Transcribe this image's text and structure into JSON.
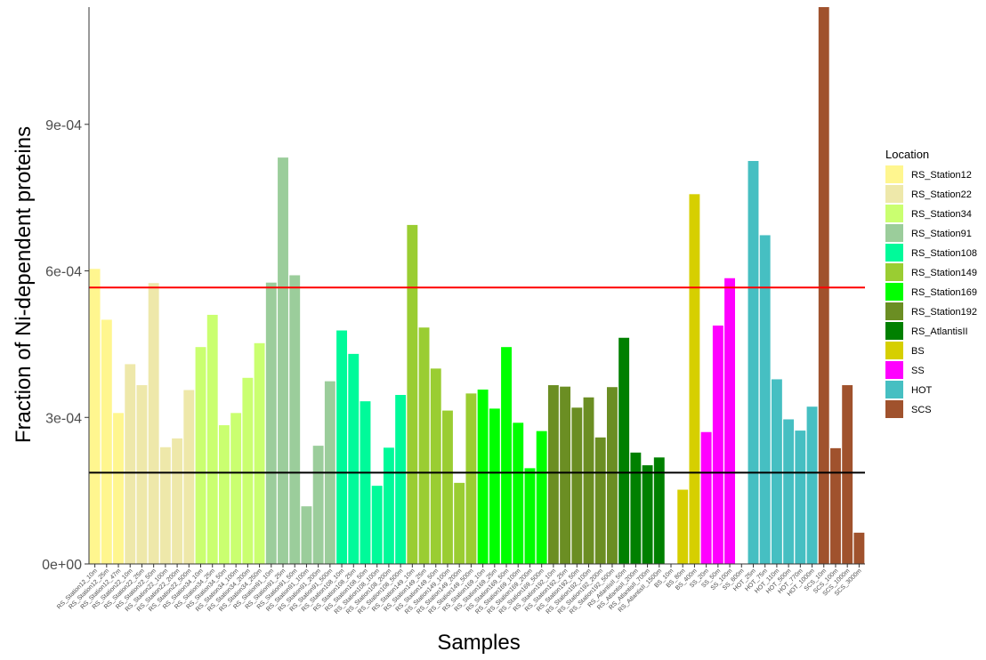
{
  "chart_data": {
    "type": "bar",
    "title": "",
    "xlabel": "Samples",
    "ylabel": "Fraction of Ni-dependent proteins",
    "ylim": [
      0,
      0.00114
    ],
    "yticks": [
      0,
      0.0003,
      0.0006,
      0.0009
    ],
    "ytick_labels": [
      "0e+00",
      "3e-04",
      "6e-04",
      "9e-04"
    ],
    "grid": false,
    "legend_title": "Location",
    "legend_position": "right",
    "reference_lines": [
      {
        "value": 0.000566,
        "color": "#ff0000"
      },
      {
        "value": 0.000187,
        "color": "#000000"
      }
    ],
    "groups": [
      {
        "name": "RS_Station12",
        "color": "#fff68f"
      },
      {
        "name": "RS_Station22",
        "color": "#eee8aa"
      },
      {
        "name": "RS_Station34",
        "color": "#caff70"
      },
      {
        "name": "RS_Station91",
        "color": "#9bcd9b"
      },
      {
        "name": "RS_Station108",
        "color": "#00fa9a"
      },
      {
        "name": "RS_Station149",
        "color": "#9acd32"
      },
      {
        "name": "RS_Station169",
        "color": "#00ff00"
      },
      {
        "name": "RS_Station192",
        "color": "#6b8e23"
      },
      {
        "name": "RS_AtlantisII",
        "color": "#008000"
      },
      {
        "name": "BS",
        "color": "#d6cf00"
      },
      {
        "name": "SS",
        "color": "#ff00ff"
      },
      {
        "name": "HOT",
        "color": "#46bfc2"
      },
      {
        "name": "SCS",
        "color": "#a0522d"
      }
    ],
    "bars": [
      {
        "sample": "RS_Station12_10m",
        "group": 0,
        "value": 0.000604
      },
      {
        "sample": "RS_Station12_25m",
        "group": 0,
        "value": 0.0005
      },
      {
        "sample": "RS_Station12_47m",
        "group": 0,
        "value": 0.000309
      },
      {
        "sample": "RS_Station22_10m",
        "group": 1,
        "value": 0.000409
      },
      {
        "sample": "RS_Station22_25m",
        "group": 1,
        "value": 0.000366
      },
      {
        "sample": "RS_Station22_50m",
        "group": 1,
        "value": 0.000575
      },
      {
        "sample": "RS_Station22_100m",
        "group": 1,
        "value": 0.000239
      },
      {
        "sample": "RS_Station22_200m",
        "group": 1,
        "value": 0.000257
      },
      {
        "sample": "RS_Station22_500m",
        "group": 1,
        "value": 0.000356
      },
      {
        "sample": "RS_Station34_10m",
        "group": 2,
        "value": 0.000444
      },
      {
        "sample": "RS_Station34_25m",
        "group": 2,
        "value": 0.00051
      },
      {
        "sample": "RS_Station34_50m",
        "group": 2,
        "value": 0.000284
      },
      {
        "sample": "RS_Station34_100m",
        "group": 2,
        "value": 0.000309
      },
      {
        "sample": "RS_Station34_200m",
        "group": 2,
        "value": 0.000381
      },
      {
        "sample": "RS_Station34_250m",
        "group": 2,
        "value": 0.000452
      },
      {
        "sample": "RS_Station91_10m",
        "group": 3,
        "value": 0.000576
      },
      {
        "sample": "RS_Station91_25m",
        "group": 3,
        "value": 0.000832
      },
      {
        "sample": "RS_Station91_50m",
        "group": 3,
        "value": 0.000591
      },
      {
        "sample": "RS_Station91_100m",
        "group": 3,
        "value": 0.000118
      },
      {
        "sample": "RS_Station91_200m",
        "group": 3,
        "value": 0.000242
      },
      {
        "sample": "RS_Station91_500m",
        "group": 3,
        "value": 0.000374
      },
      {
        "sample": "RS_Station108_10m",
        "group": 4,
        "value": 0.000478
      },
      {
        "sample": "RS_Station108_25m",
        "group": 4,
        "value": 0.00043
      },
      {
        "sample": "RS_Station108_50m",
        "group": 4,
        "value": 0.000333
      },
      {
        "sample": "RS_Station108_100m",
        "group": 4,
        "value": 0.00016
      },
      {
        "sample": "RS_Station108_200m",
        "group": 4,
        "value": 0.000238
      },
      {
        "sample": "RS_Station108_500m",
        "group": 4,
        "value": 0.000346
      },
      {
        "sample": "RS_Station149_10m",
        "group": 5,
        "value": 0.000694
      },
      {
        "sample": "RS_Station149_25m",
        "group": 5,
        "value": 0.000484
      },
      {
        "sample": "RS_Station149_50m",
        "group": 5,
        "value": 0.0004
      },
      {
        "sample": "RS_Station149_100m",
        "group": 5,
        "value": 0.000314
      },
      {
        "sample": "RS_Station149_200m",
        "group": 5,
        "value": 0.000166
      },
      {
        "sample": "RS_Station149_500m",
        "group": 5,
        "value": 0.000349
      },
      {
        "sample": "RS_Station169_10m",
        "group": 6,
        "value": 0.000357
      },
      {
        "sample": "RS_Station169_25m",
        "group": 6,
        "value": 0.000318
      },
      {
        "sample": "RS_Station169_50m",
        "group": 6,
        "value": 0.000444
      },
      {
        "sample": "RS_Station169_100m",
        "group": 6,
        "value": 0.000289
      },
      {
        "sample": "RS_Station169_200m",
        "group": 6,
        "value": 0.000196
      },
      {
        "sample": "RS_Station169_500m",
        "group": 6,
        "value": 0.000272
      },
      {
        "sample": "RS_Station192_10m",
        "group": 7,
        "value": 0.000366
      },
      {
        "sample": "RS_Station192_25m",
        "group": 7,
        "value": 0.000363
      },
      {
        "sample": "RS_Station192_50m",
        "group": 7,
        "value": 0.00032
      },
      {
        "sample": "RS_Station192_100m",
        "group": 7,
        "value": 0.000341
      },
      {
        "sample": "RS_Station192_200m",
        "group": 7,
        "value": 0.000259
      },
      {
        "sample": "RS_Station192_500m",
        "group": 7,
        "value": 0.000362
      },
      {
        "sample": "RS_AtlantisII_50m",
        "group": 8,
        "value": 0.000463
      },
      {
        "sample": "RS_AtlantisII_200m",
        "group": 8,
        "value": 0.000228
      },
      {
        "sample": "RS_AtlantisII_700m",
        "group": 8,
        "value": 0.000202
      },
      {
        "sample": "RS_AtlantisII_1500m",
        "group": 8,
        "value": 0.000218
      },
      {
        "sample": "BS_10m",
        "group": 9,
        "value": 0
      },
      {
        "sample": "BS_80m",
        "group": 9,
        "value": 0.000152
      },
      {
        "sample": "BS_400m",
        "group": 9,
        "value": 0.000757
      },
      {
        "sample": "SS_20m",
        "group": 10,
        "value": 0.00027
      },
      {
        "sample": "SS_50m",
        "group": 10,
        "value": 0.000488
      },
      {
        "sample": "SS_100m",
        "group": 10,
        "value": 0.000585
      },
      {
        "sample": "SS_600m",
        "group": 10,
        "value": 0
      },
      {
        "sample": "HOT_25m",
        "group": 11,
        "value": 0.000825
      },
      {
        "sample": "HOT_75m",
        "group": 11,
        "value": 0.000673
      },
      {
        "sample": "HOT_110m",
        "group": 11,
        "value": 0.000378
      },
      {
        "sample": "HOT_500m",
        "group": 11,
        "value": 0.000296
      },
      {
        "sample": "HOT_770m",
        "group": 11,
        "value": 0.000273
      },
      {
        "sample": "HOT_1000m",
        "group": 11,
        "value": 0.000322
      },
      {
        "sample": "SCS_10m",
        "group": 12,
        "value": 0.00114
      },
      {
        "sample": "SCS_100m",
        "group": 12,
        "value": 0.000237
      },
      {
        "sample": "SCS_1000m",
        "group": 12,
        "value": 0.000366
      },
      {
        "sample": "SCS_3000m",
        "group": 12,
        "value": 6.4e-05
      }
    ]
  }
}
